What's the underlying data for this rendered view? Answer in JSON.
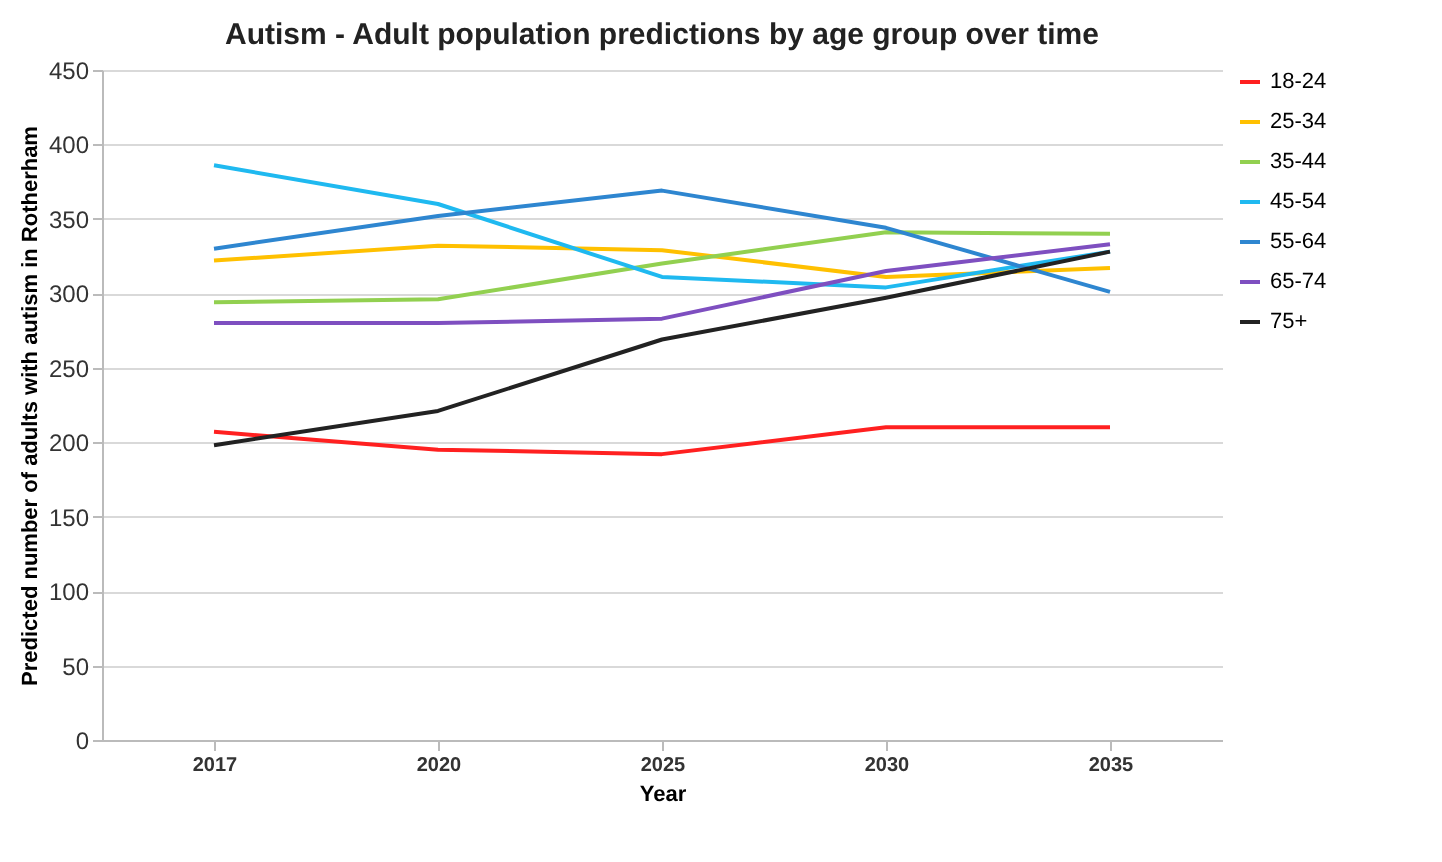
{
  "chart_data": {
    "type": "line",
    "title": "Autism - Adult population predictions by age group over time",
    "xlabel": "Year",
    "ylabel": "Predicted number of adults with autism in Rotherham",
    "categories": [
      "2017",
      "2020",
      "2025",
      "2030",
      "2035"
    ],
    "series": [
      {
        "name": "18-24",
        "color": "#ff2020",
        "values": [
          207,
          195,
          192,
          210,
          210
        ]
      },
      {
        "name": "25-34",
        "color": "#ffc000",
        "values": [
          322,
          332,
          329,
          311,
          317
        ]
      },
      {
        "name": "35-44",
        "color": "#92d050",
        "values": [
          294,
          296,
          320,
          341,
          340
        ]
      },
      {
        "name": "45-54",
        "color": "#1fb9f0",
        "values": [
          386,
          360,
          311,
          304,
          328
        ]
      },
      {
        "name": "55-64",
        "color": "#2e86d0",
        "values": [
          330,
          352,
          369,
          344,
          301
        ]
      },
      {
        "name": "65-74",
        "color": "#7e4fc0",
        "values": [
          280,
          280,
          283,
          315,
          333
        ]
      },
      {
        "name": "75+",
        "color": "#222222",
        "values": [
          198,
          221,
          269,
          297,
          328
        ]
      }
    ],
    "ylim": [
      0,
      450
    ],
    "yticks": [
      0,
      50,
      100,
      150,
      200,
      250,
      300,
      350,
      400,
      450
    ],
    "grid": "y",
    "legend": "right",
    "marker": "none",
    "line_style": "solid"
  }
}
